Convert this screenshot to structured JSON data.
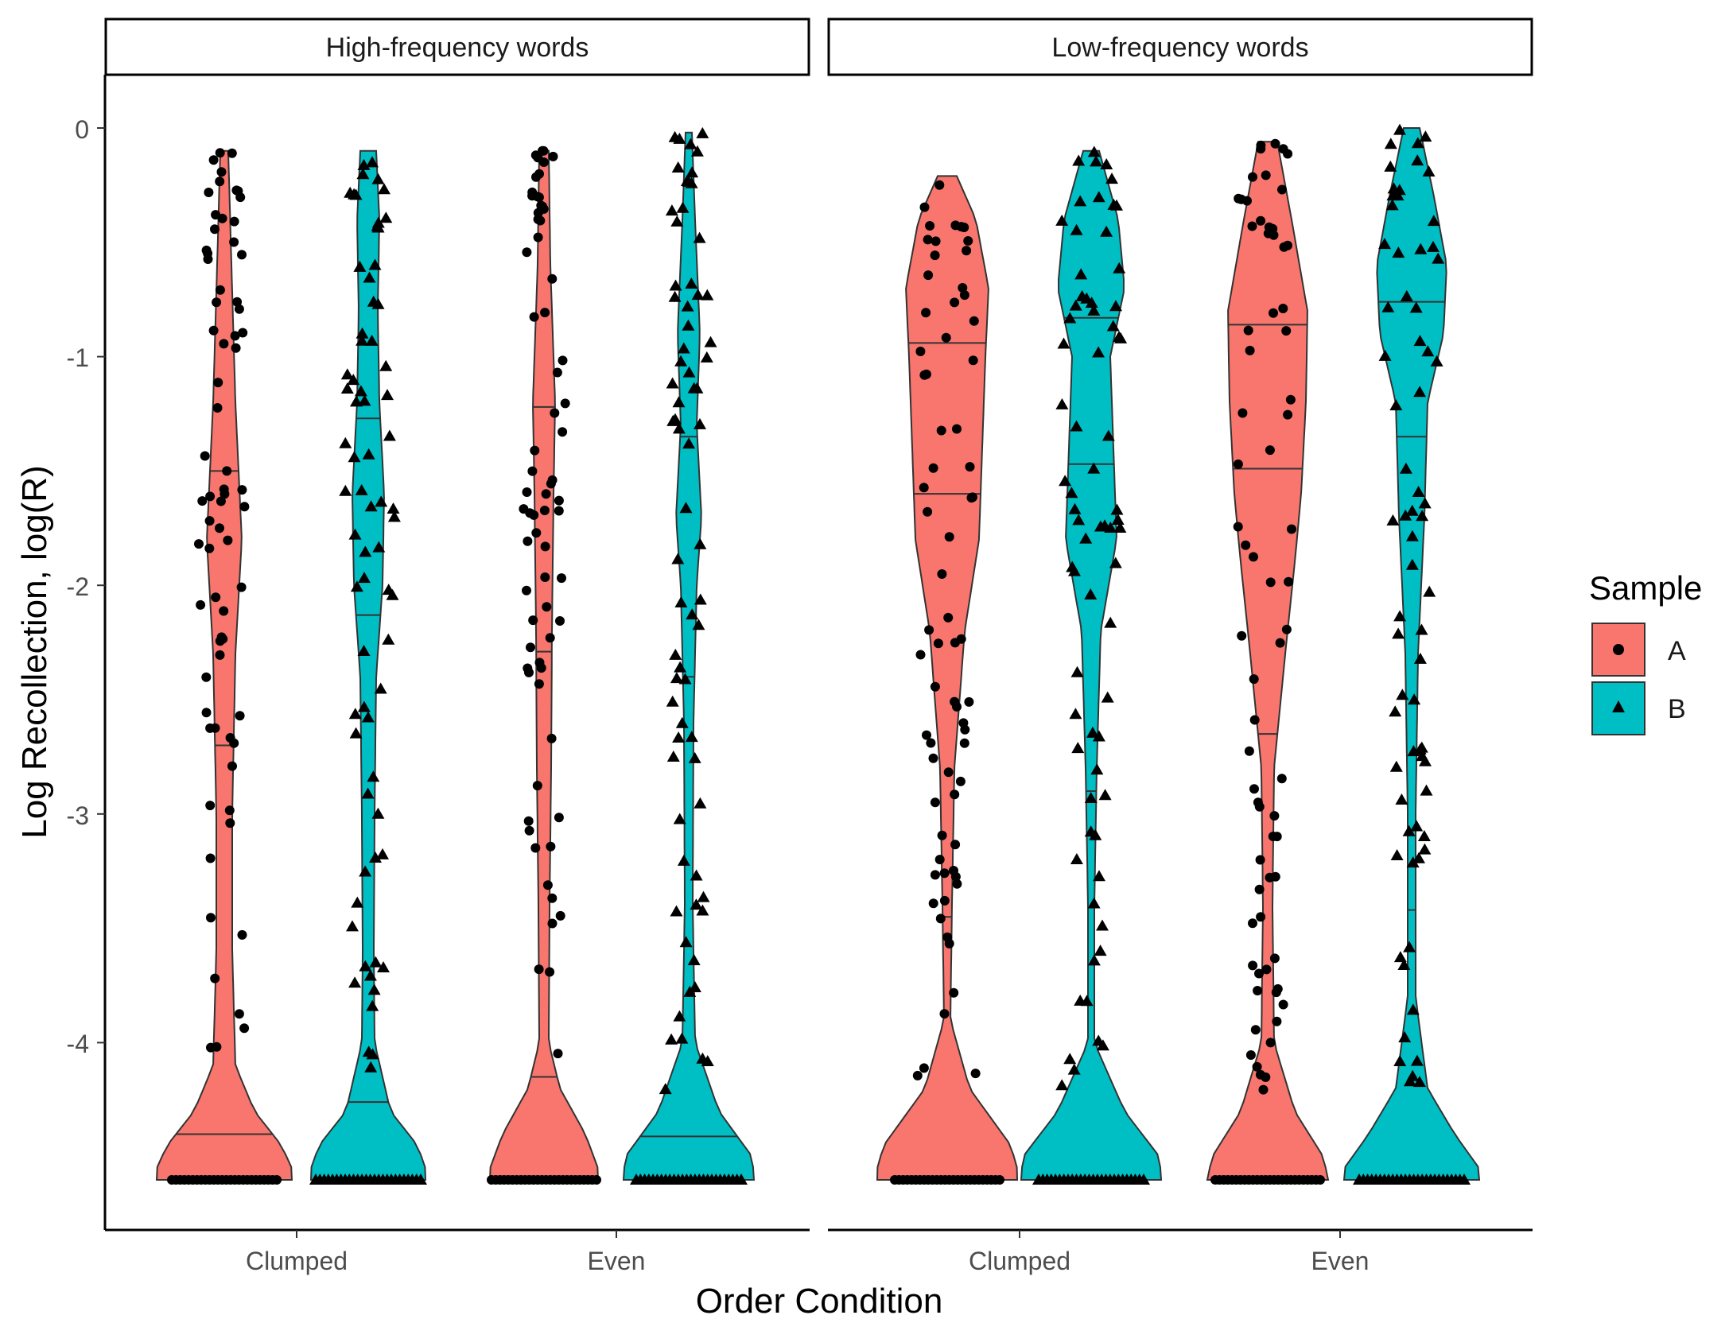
{
  "chart_data": {
    "type": "violin",
    "xlabel": "Order Condition",
    "ylabel": "Log Recollection, log(R)",
    "ylim": [
      -4.85,
      0.22
    ],
    "yticks": [
      "0",
      "-1",
      "-2",
      "-3",
      "-4"
    ],
    "ytick_values": [
      0,
      -1,
      -2,
      -3,
      -4
    ],
    "categories": [
      "Clumped",
      "Even"
    ],
    "legend": {
      "title": "Sample",
      "position": "right",
      "entries": [
        {
          "label": "A",
          "color": "#F8766D",
          "marker": "circle"
        },
        {
          "label": "B",
          "color": "#00BFC4",
          "marker": "triangle"
        }
      ]
    },
    "panels": [
      {
        "strip": "High-frequency words",
        "groups": [
          {
            "category": "Clumped",
            "sample": "A",
            "max": -0.1,
            "min": -4.6,
            "quantiles": [
              -1.5,
              -2.7,
              -4.4
            ]
          },
          {
            "category": "Clumped",
            "sample": "B",
            "max": -0.1,
            "min": -4.6,
            "quantiles": [
              -1.27,
              -2.13,
              -4.26
            ]
          },
          {
            "category": "Even",
            "sample": "A",
            "max": -0.1,
            "min": -4.6,
            "quantiles": [
              -1.22,
              -2.29,
              -4.15
            ]
          },
          {
            "category": "Even",
            "sample": "B",
            "max": -0.02,
            "min": -4.6,
            "quantiles": [
              -1.35,
              -2.4,
              -4.41
            ]
          }
        ]
      },
      {
        "strip": "Low-frequency words",
        "groups": [
          {
            "category": "Clumped",
            "sample": "A",
            "max": -0.21,
            "min": -4.6,
            "quantiles": [
              -0.94,
              -1.6,
              -3.45
            ]
          },
          {
            "category": "Clumped",
            "sample": "B",
            "max": -0.1,
            "min": -4.6,
            "quantiles": [
              -0.83,
              -1.47,
              -2.9
            ]
          },
          {
            "category": "Even",
            "sample": "A",
            "max": -0.06,
            "min": -4.6,
            "quantiles": [
              -0.86,
              -1.49,
              -2.65
            ]
          },
          {
            "category": "Even",
            "sample": "B",
            "max": 0.0,
            "min": -4.6,
            "quantiles": [
              -0.76,
              -1.35,
              -3.42
            ]
          }
        ]
      }
    ]
  }
}
